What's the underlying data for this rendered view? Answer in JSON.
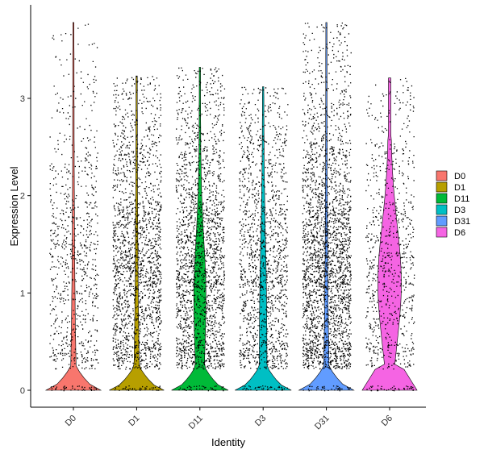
{
  "chart_data": {
    "type": "violin",
    "title": "",
    "xlabel": "Identity",
    "ylabel": "Expression Level",
    "ylim": [
      -0.2,
      3.85
    ],
    "yticks": [
      0,
      1,
      2,
      3
    ],
    "grid": false,
    "legend_position": "right",
    "categories": [
      "D0",
      "D1",
      "D11",
      "D3",
      "D31",
      "D6"
    ],
    "series": [
      {
        "name": "D0",
        "color": "#F8766D",
        "max": 3.78,
        "median": 0.0,
        "peak_density_at": 0.0,
        "relative_cells": 0.3
      },
      {
        "name": "D1",
        "color": "#B79F00",
        "max": 3.23,
        "median": 0.0,
        "peak_density_at": 0.0,
        "relative_cells": 0.7
      },
      {
        "name": "D11",
        "color": "#00BA38",
        "max": 3.32,
        "median": 0.0,
        "peak_density_at": 0.0,
        "relative_cells": 0.75
      },
      {
        "name": "D3",
        "color": "#00BFC4",
        "max": 3.12,
        "median": 0.0,
        "peak_density_at": 0.0,
        "relative_cells": 0.55
      },
      {
        "name": "D31",
        "color": "#619CFF",
        "max": 3.78,
        "median": 0.0,
        "peak_density_at": 0.0,
        "relative_cells": 1.0
      },
      {
        "name": "D6",
        "color": "#F564E3",
        "max": 3.21,
        "median": 0.0,
        "peak_density_at": 0.0,
        "relative_cells": 0.3
      }
    ]
  }
}
